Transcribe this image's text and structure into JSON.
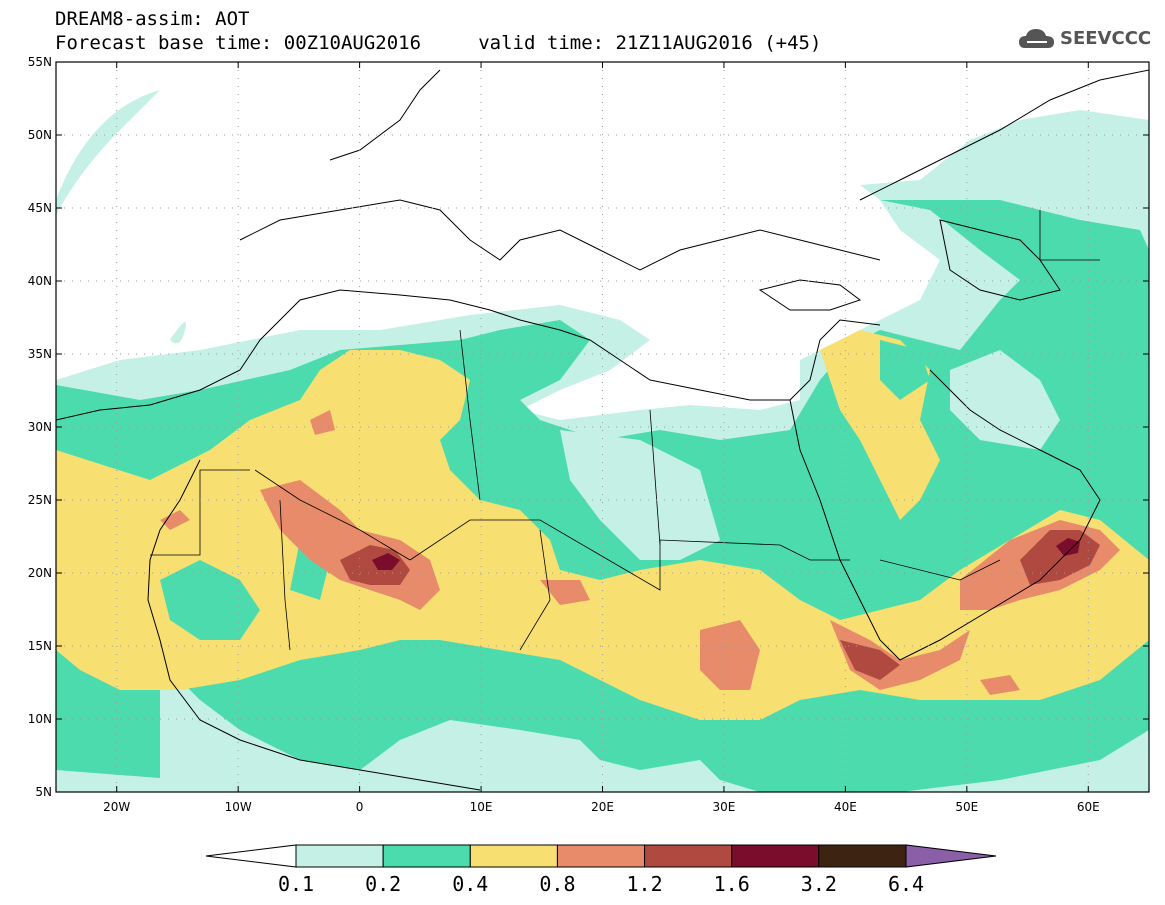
{
  "header": {
    "line1": "DREAM8-assim: AOT",
    "line2": "Forecast base time: 00Z10AUG2016     valid time: 21Z11AUG2016 (+45)"
  },
  "logo": {
    "text": "SEEVCCC",
    "icon": "cloud-icon"
  },
  "map": {
    "lon_range": [
      -25,
      65
    ],
    "lat_range": [
      5,
      55
    ],
    "lon_ticks": [
      {
        "lon": -20,
        "label": "20W"
      },
      {
        "lon": -10,
        "label": "10W"
      },
      {
        "lon": 0,
        "label": "0"
      },
      {
        "lon": 10,
        "label": "10E"
      },
      {
        "lon": 20,
        "label": "20E"
      },
      {
        "lon": 30,
        "label": "30E"
      },
      {
        "lon": 40,
        "label": "40E"
      },
      {
        "lon": 50,
        "label": "50E"
      },
      {
        "lon": 60,
        "label": "60E"
      }
    ],
    "lat_ticks": [
      {
        "lat": 55,
        "label": "55N"
      },
      {
        "lat": 50,
        "label": "50N"
      },
      {
        "lat": 45,
        "label": "45N"
      },
      {
        "lat": 40,
        "label": "40N"
      },
      {
        "lat": 35,
        "label": "35N"
      },
      {
        "lat": 30,
        "label": "30N"
      },
      {
        "lat": 25,
        "label": "25N"
      },
      {
        "lat": 20,
        "label": "20N"
      },
      {
        "lat": 15,
        "label": "15N"
      },
      {
        "lat": 10,
        "label": "10N"
      },
      {
        "lat": 5,
        "label": "5N"
      }
    ],
    "grid": "dotted"
  },
  "colorbar": {
    "levels": [
      "0.1",
      "0.2",
      "0.4",
      "0.8",
      "1.2",
      "1.6",
      "3.2",
      "6.4"
    ],
    "colors": [
      "#ffffff",
      "#c4f0e6",
      "#4cdbad",
      "#f7e071",
      "#e88b6b",
      "#b04a40",
      "#7a0c2c",
      "#3d2412",
      "#8a5fa8"
    ]
  }
}
